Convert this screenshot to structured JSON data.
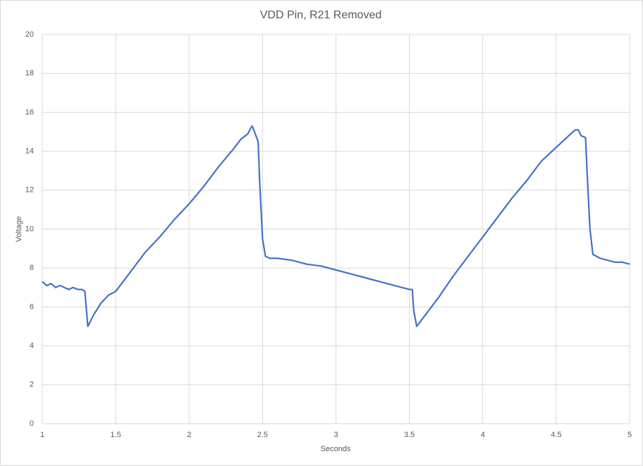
{
  "chart_data": {
    "type": "line",
    "title": "VDD Pin, R21 Removed",
    "x_label": "Seconds",
    "y_label": "Voltage",
    "x": [
      1,
      1.03,
      1.06,
      1.09,
      1.12,
      1.15,
      1.18,
      1.21,
      1.24,
      1.27,
      1.29,
      1.3,
      1.31,
      1.35,
      1.4,
      1.45,
      1.5,
      1.6,
      1.7,
      1.8,
      1.9,
      2.0,
      2.1,
      2.2,
      2.3,
      2.35,
      2.4,
      2.42,
      2.43,
      2.45,
      2.47,
      2.48,
      2.5,
      2.52,
      2.55,
      2.6,
      2.7,
      2.8,
      2.9,
      3.0,
      3.1,
      3.2,
      3.3,
      3.4,
      3.5,
      3.52,
      3.53,
      3.55,
      3.6,
      3.7,
      3.8,
      3.9,
      4.0,
      4.1,
      4.2,
      4.3,
      4.4,
      4.5,
      4.6,
      4.63,
      4.65,
      4.67,
      4.7,
      4.71,
      4.73,
      4.75,
      4.8,
      4.9,
      4.95,
      5.0
    ],
    "values": [
      7.3,
      7.1,
      7.2,
      7.0,
      7.1,
      7.0,
      6.9,
      7.0,
      6.9,
      6.9,
      6.8,
      5.9,
      5.0,
      5.6,
      6.2,
      6.6,
      6.8,
      7.8,
      8.8,
      9.6,
      10.5,
      11.3,
      12.2,
      13.2,
      14.1,
      14.6,
      14.9,
      15.2,
      15.3,
      14.9,
      14.5,
      12.5,
      9.5,
      8.6,
      8.5,
      8.5,
      8.4,
      8.2,
      8.1,
      7.9,
      7.7,
      7.5,
      7.3,
      7.1,
      6.9,
      6.9,
      5.8,
      5.0,
      5.5,
      6.5,
      7.6,
      8.6,
      9.6,
      10.6,
      11.6,
      12.5,
      13.5,
      14.2,
      14.9,
      15.1,
      15.1,
      14.8,
      14.7,
      13.0,
      10.0,
      8.7,
      8.5,
      8.3,
      8.3,
      8.2
    ],
    "color": "#4472c4",
    "xlim": [
      1,
      5
    ],
    "xticks": [
      1,
      1.5,
      2,
      2.5,
      3,
      3.5,
      4,
      4.5,
      5
    ],
    "ylim": [
      0,
      20
    ],
    "yticks": [
      0,
      2,
      4,
      6,
      8,
      10,
      12,
      14,
      16,
      18,
      20
    ],
    "grid": true
  }
}
